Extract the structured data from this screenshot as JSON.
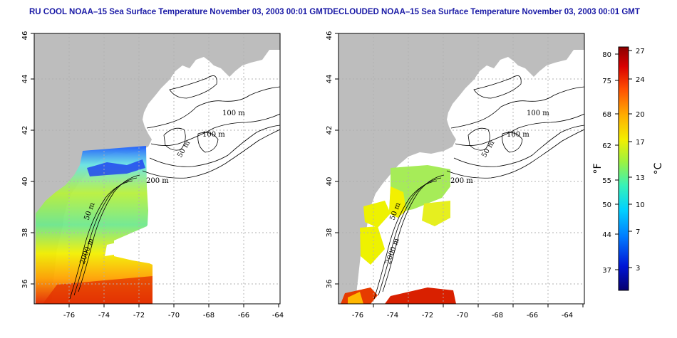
{
  "panels": [
    {
      "title": "RU COOL NOAA–15 Sea Surface Temperature November 03, 2003 00:01 GMT",
      "x_ticks": [
        "-76",
        "-74",
        "-72",
        "-70",
        "-68",
        "-66",
        "-64"
      ],
      "y_ticks": [
        "36",
        "38",
        "40",
        "42",
        "44",
        "46"
      ],
      "contour_labels": [
        "100 m",
        "100 m",
        "50 m",
        "200 m",
        "50 m",
        "2000 m"
      ]
    },
    {
      "title": "DECLOUDED NOAA–15 Sea Surface Temperature November 03, 2003 00:01 GMT",
      "x_ticks": [
        "-76",
        "-74",
        "-72",
        "-70",
        "-68",
        "-66",
        "-64"
      ],
      "y_ticks": [
        "36",
        "38",
        "40",
        "42",
        "44",
        "46"
      ],
      "contour_labels": [
        "100 m",
        "100 m",
        "50 m",
        "200 m",
        "50 m",
        "2000 m"
      ]
    }
  ],
  "colorbar": {
    "fahrenheit_unit": "°F",
    "celsius_unit": "°C",
    "fahrenheit_ticks": [
      "80",
      "75",
      "68",
      "62",
      "55",
      "50",
      "44",
      "37"
    ],
    "celsius_ticks": [
      "27",
      "24",
      "20",
      "17",
      "13",
      "10",
      "7",
      "3"
    ],
    "colors": [
      "#08006e",
      "#0015d6",
      "#007bff",
      "#00d1ff",
      "#36f2b9",
      "#9ef23e",
      "#f3ef00",
      "#ffad00",
      "#ff4d00",
      "#d90000",
      "#8a0000"
    ]
  },
  "map_colors": {
    "land": "#bdbdbd",
    "grid": "#b0b0b0"
  }
}
